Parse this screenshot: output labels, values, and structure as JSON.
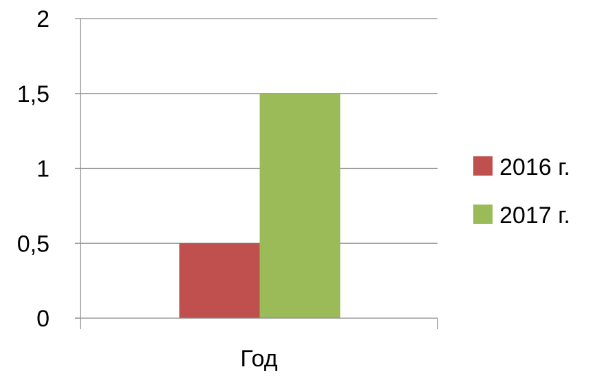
{
  "chart_data": {
    "type": "bar",
    "categories": [
      "Год"
    ],
    "series": [
      {
        "name": "2016 г.",
        "values": [
          0.5
        ],
        "color": "#c0504d"
      },
      {
        "name": "2017 г.",
        "values": [
          1.5
        ],
        "color": "#9bbb59"
      }
    ],
    "title": "",
    "xlabel": "",
    "ylabel": "",
    "ylim": [
      0,
      2
    ],
    "yticks": [
      {
        "value": 0,
        "label": "0"
      },
      {
        "value": 0.5,
        "label": "0,5"
      },
      {
        "value": 1,
        "label": "1"
      },
      {
        "value": 1.5,
        "label": "1,5"
      },
      {
        "value": 2,
        "label": "2"
      }
    ],
    "grid": true,
    "legend_position": "right"
  }
}
